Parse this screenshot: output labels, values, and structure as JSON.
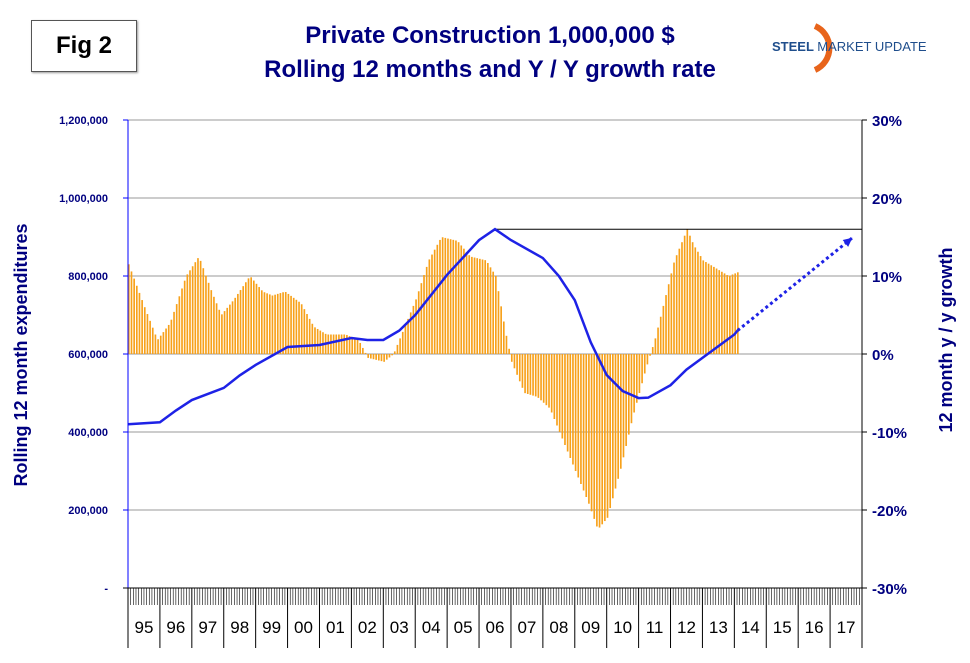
{
  "fig_label": "Fig 2",
  "logo_text": "STEEL MARKET UPDATE",
  "chart_data": {
    "type": "bar+line",
    "title": [
      "Private Construction 1,000,000 $",
      "Rolling 12 months and Y / Y growth rate"
    ],
    "ylabel": "Rolling 12 month expenditures",
    "y2label": "12 month y / y growth",
    "ylim": [
      0,
      1200000
    ],
    "y2lim": [
      -30,
      30
    ],
    "yticks": [
      "-",
      "200,000",
      "400,000",
      "600,000",
      "800,000",
      "1,000,000",
      "1,200,000"
    ],
    "y2ticks": [
      "-30%",
      "-20%",
      "-10%",
      "0%",
      "10%",
      "20%",
      "30%"
    ],
    "xticks": [
      "95",
      "96",
      "97",
      "98",
      "99",
      "00",
      "01",
      "02",
      "03",
      "04",
      "05",
      "06",
      "07",
      "08",
      "09",
      "10",
      "11",
      "12",
      "13",
      "14",
      "15",
      "16",
      "17"
    ],
    "xrange": [
      1995,
      2018
    ],
    "grid": true,
    "colors": {
      "bars": "#F7A11A",
      "line": "#1E22E6",
      "text": "#000080"
    },
    "series": [
      {
        "name": "Y/Y growth rate (%)",
        "type": "bar",
        "axis": "right",
        "points": [
          [
            1995.0,
            11.5
          ],
          [
            1995.5,
            6
          ],
          [
            1995.9,
            1.8
          ],
          [
            1996.3,
            4
          ],
          [
            1996.8,
            10
          ],
          [
            1997.2,
            12.5
          ],
          [
            1997.6,
            8
          ],
          [
            1997.9,
            5
          ],
          [
            1998.3,
            7
          ],
          [
            1998.8,
            10
          ],
          [
            1999.2,
            8
          ],
          [
            1999.5,
            7.5
          ],
          [
            1999.9,
            8
          ],
          [
            2000.4,
            6.5
          ],
          [
            2000.8,
            3.5
          ],
          [
            2001.2,
            2.5
          ],
          [
            2001.8,
            2.5
          ],
          [
            2002.2,
            1.8
          ],
          [
            2002.5,
            -0.5
          ],
          [
            2003.0,
            -1
          ],
          [
            2003.3,
            0
          ],
          [
            2003.6,
            3
          ],
          [
            2004.0,
            7
          ],
          [
            2004.4,
            12
          ],
          [
            2004.8,
            15
          ],
          [
            2005.3,
            14.5
          ],
          [
            2005.7,
            12.5
          ],
          [
            2006.2,
            12
          ],
          [
            2006.5,
            10
          ],
          [
            2006.8,
            3
          ],
          [
            2007.0,
            -1
          ],
          [
            2007.4,
            -5
          ],
          [
            2007.8,
            -5.5
          ],
          [
            2008.2,
            -7
          ],
          [
            2008.6,
            -11
          ],
          [
            2009.0,
            -15
          ],
          [
            2009.4,
            -19
          ],
          [
            2009.7,
            -22.5
          ],
          [
            2010.0,
            -21
          ],
          [
            2010.4,
            -15
          ],
          [
            2010.8,
            -8
          ],
          [
            2011.2,
            -2
          ],
          [
            2011.5,
            2
          ],
          [
            2011.8,
            7
          ],
          [
            2012.1,
            12
          ],
          [
            2012.5,
            16
          ],
          [
            2012.7,
            14
          ],
          [
            2013.0,
            12
          ],
          [
            2013.4,
            11
          ],
          [
            2013.8,
            10
          ],
          [
            2014.1,
            10.5
          ]
        ]
      },
      {
        "name": "Rolling 12 month expenditures",
        "type": "line",
        "axis": "left",
        "points": [
          [
            1995.0,
            420000
          ],
          [
            1996.0,
            425000
          ],
          [
            1996.5,
            455000
          ],
          [
            1997.0,
            482000
          ],
          [
            1998.0,
            513000
          ],
          [
            1998.5,
            545000
          ],
          [
            1999.0,
            572000
          ],
          [
            2000.0,
            618000
          ],
          [
            2001.0,
            623000
          ],
          [
            2002.0,
            641000
          ],
          [
            2002.5,
            636000
          ],
          [
            2003.0,
            636000
          ],
          [
            2003.5,
            660000
          ],
          [
            2004.0,
            700000
          ],
          [
            2005.0,
            803000
          ],
          [
            2006.0,
            892000
          ],
          [
            2006.5,
            920000
          ],
          [
            2007.0,
            892000
          ],
          [
            2008.0,
            846000
          ],
          [
            2008.5,
            800000
          ],
          [
            2009.0,
            738000
          ],
          [
            2009.5,
            630000
          ],
          [
            2010.0,
            546000
          ],
          [
            2010.5,
            505000
          ],
          [
            2011.0,
            487000
          ],
          [
            2011.3,
            488000
          ],
          [
            2012.0,
            520000
          ],
          [
            2012.5,
            560000
          ],
          [
            2013.0,
            590000
          ],
          [
            2014.0,
            650000
          ],
          [
            2014.1,
            660000
          ]
        ]
      }
    ],
    "annotations": [
      {
        "type": "hline",
        "value": 920000,
        "from": 2006.5,
        "to": 2018,
        "axis": "left"
      },
      {
        "type": "dotted-arrow",
        "from": [
          2014.1,
          660000
        ],
        "to": [
          2017.7,
          898000
        ],
        "axis": "left"
      }
    ]
  }
}
